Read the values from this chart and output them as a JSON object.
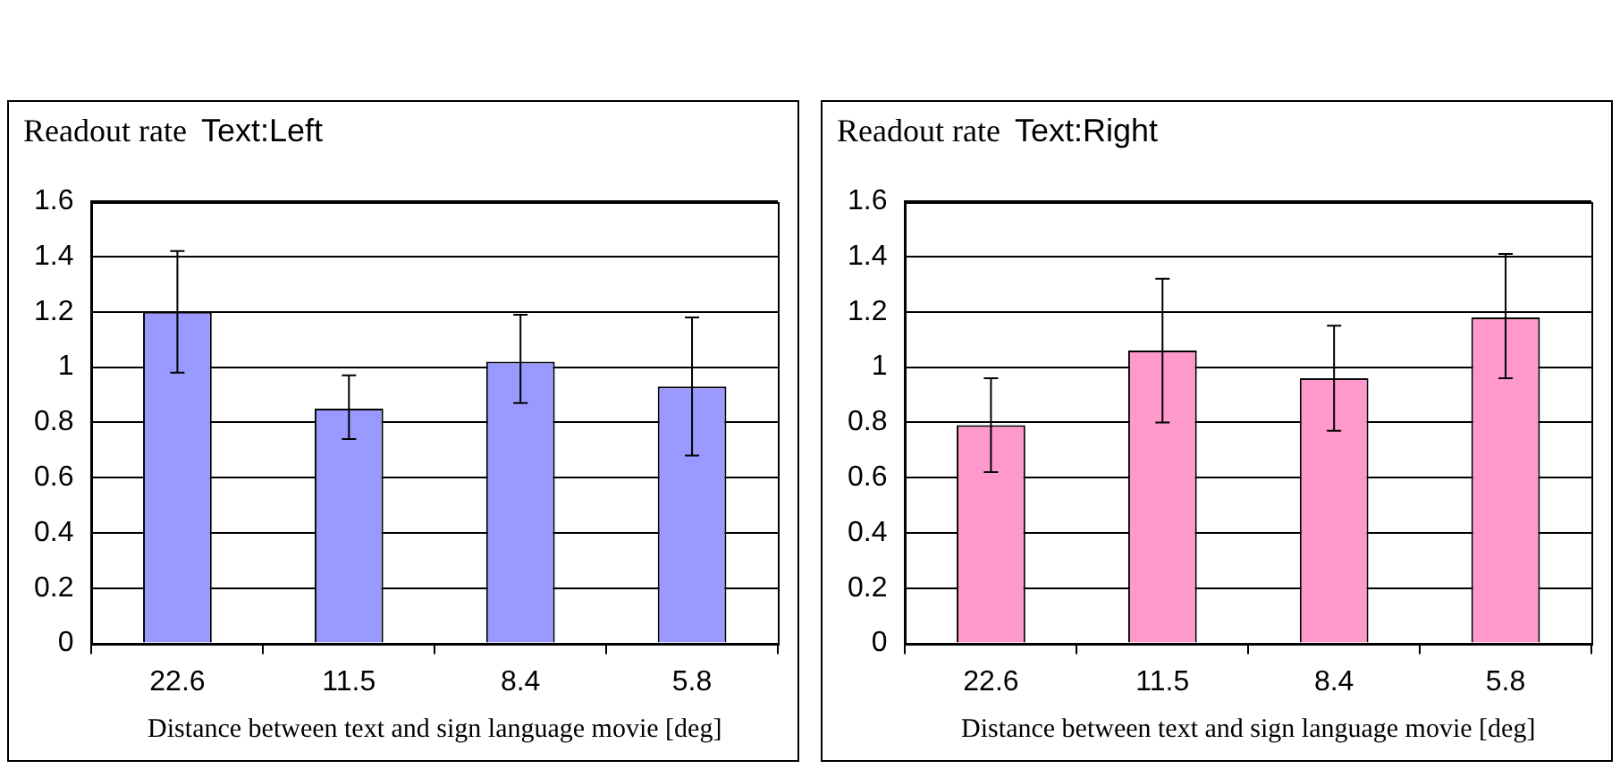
{
  "chart_data": [
    {
      "type": "bar",
      "ylabel": "Readout rate",
      "title": "Text:Left",
      "xlabel": "Distance between text and sign language movie [deg]",
      "categories": [
        "22.6",
        "11.5",
        "8.4",
        "5.8"
      ],
      "series": [
        {
          "color": "#9999ff",
          "values": [
            1.2,
            0.85,
            1.02,
            0.93
          ],
          "errors": [
            [
              0.98,
              1.42
            ],
            [
              0.74,
              0.97
            ],
            [
              0.87,
              1.19
            ],
            [
              0.68,
              1.18
            ]
          ]
        }
      ],
      "ylim": [
        0,
        1.6
      ],
      "yticks": [
        0,
        0.2,
        0.4,
        0.6,
        0.8,
        1,
        1.2,
        1.4,
        1.6
      ],
      "grid": "y",
      "legend": false
    },
    {
      "type": "bar",
      "ylabel": "Readout rate",
      "title": "Text:Right",
      "xlabel": "Distance between text and sign language movie [deg]",
      "categories": [
        "22.6",
        "11.5",
        "8.4",
        "5.8"
      ],
      "series": [
        {
          "color": "#ff99cc",
          "values": [
            0.79,
            1.06,
            0.96,
            1.18
          ],
          "errors": [
            [
              0.62,
              0.96
            ],
            [
              0.8,
              1.32
            ],
            [
              0.77,
              1.15
            ],
            [
              0.96,
              1.41
            ]
          ]
        }
      ],
      "ylim": [
        0,
        1.6
      ],
      "yticks": [
        0,
        0.2,
        0.4,
        0.6,
        0.8,
        1,
        1.2,
        1.4,
        1.6
      ],
      "grid": "y",
      "legend": false
    }
  ]
}
